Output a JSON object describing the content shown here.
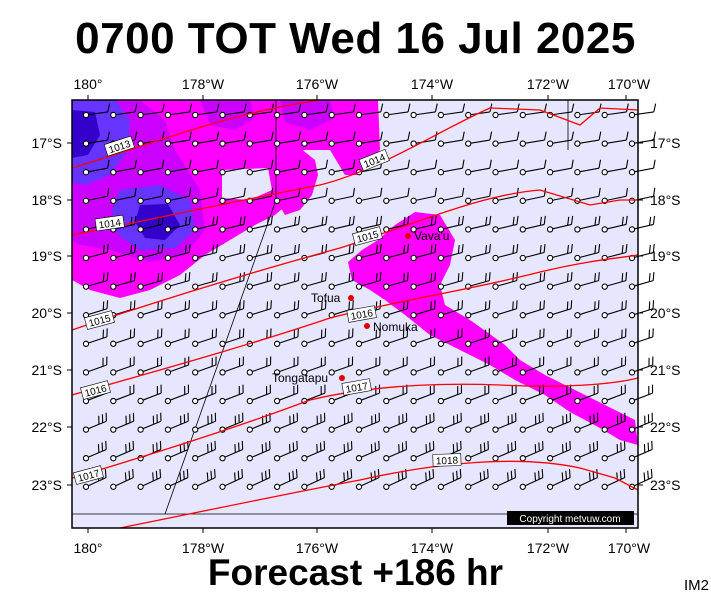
{
  "title": "0700 TOT Wed 16 Jul 2025",
  "footer": "Forecast +186 hr",
  "corner_tag": "IM2",
  "copyright": "Copyright metvuw.com",
  "axes": {
    "longitudes": [
      "180°",
      "178°W",
      "176°W",
      "174°W",
      "172°W",
      "170°W"
    ],
    "latitudes": [
      "17°S",
      "18°S",
      "19°S",
      "20°S",
      "21°S",
      "22°S",
      "23°S"
    ]
  },
  "isobars": [
    {
      "label": "1013"
    },
    {
      "label": "1014"
    },
    {
      "label": "1014"
    },
    {
      "label": "1015"
    },
    {
      "label": "1015"
    },
    {
      "label": "1016"
    },
    {
      "label": "1016"
    },
    {
      "label": "1017"
    },
    {
      "label": "1017"
    },
    {
      "label": "1018"
    }
  ],
  "places": [
    {
      "name": "Vava'u"
    },
    {
      "name": "Tofua"
    },
    {
      "name": "Nomuka"
    },
    {
      "name": "Tongatapu"
    }
  ],
  "colors": {
    "background": "#e6e6ff",
    "rain_light": "#ff00ff",
    "rain_mid": "#cc00ff",
    "rain_heavy": "#6633ff",
    "rain_core": "#3300cc",
    "isobar": "#ff0000",
    "wind_barb": "#000000",
    "place_marker": "#dd0000"
  }
}
